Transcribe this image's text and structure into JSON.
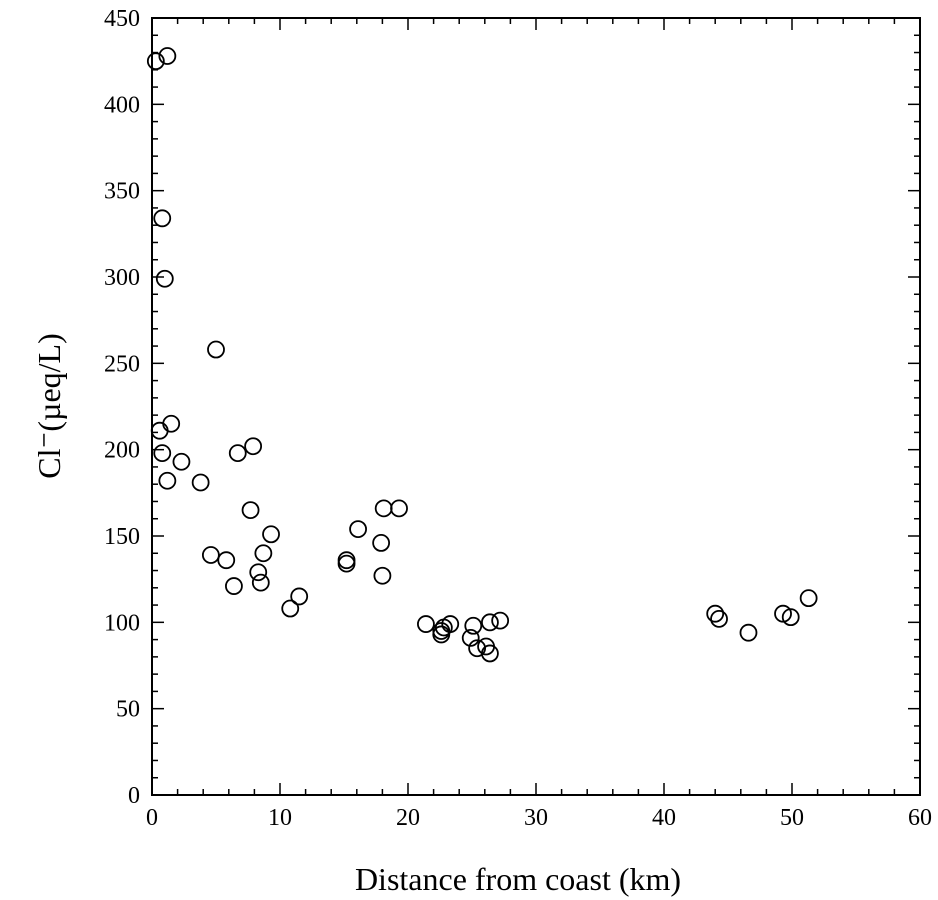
{
  "chart_data": {
    "type": "scatter",
    "xlabel": "Distance from coast (km)",
    "ylabel": "Cl⁻(µeq/L)",
    "xlim": [
      0,
      60
    ],
    "ylim": [
      0,
      450
    ],
    "xticks": [
      0,
      10,
      20,
      30,
      40,
      50,
      60
    ],
    "yticks": [
      0,
      50,
      100,
      150,
      200,
      250,
      300,
      350,
      400,
      450
    ],
    "x_minor_step": 2,
    "y_minor_step": 10,
    "grid": false,
    "marker": "open-circle",
    "marker_color": "#000000",
    "series": [
      {
        "points": [
          [
            0.3,
            425
          ],
          [
            1.2,
            428
          ],
          [
            0.8,
            334
          ],
          [
            1.0,
            299
          ],
          [
            5.0,
            258
          ],
          [
            0.6,
            211
          ],
          [
            1.5,
            215
          ],
          [
            0.8,
            198
          ],
          [
            1.2,
            182
          ],
          [
            2.3,
            193
          ],
          [
            3.8,
            181
          ],
          [
            6.7,
            198
          ],
          [
            7.9,
            202
          ],
          [
            7.7,
            165
          ],
          [
            9.3,
            151
          ],
          [
            8.7,
            140
          ],
          [
            4.6,
            139
          ],
          [
            5.8,
            136
          ],
          [
            8.3,
            129
          ],
          [
            8.5,
            123
          ],
          [
            6.4,
            121
          ],
          [
            11.5,
            115
          ],
          [
            10.8,
            108
          ],
          [
            15.2,
            134
          ],
          [
            15.2,
            136
          ],
          [
            16.1,
            154
          ],
          [
            18.1,
            166
          ],
          [
            19.3,
            166
          ],
          [
            17.9,
            146
          ],
          [
            18.0,
            127
          ],
          [
            21.4,
            99
          ],
          [
            22.6,
            93
          ],
          [
            22.8,
            97
          ],
          [
            22.6,
            95
          ],
          [
            23.3,
            99
          ],
          [
            25.1,
            98
          ],
          [
            24.9,
            91
          ],
          [
            25.4,
            85
          ],
          [
            26.1,
            86
          ],
          [
            26.4,
            82
          ],
          [
            26.4,
            100
          ],
          [
            27.2,
            101
          ],
          [
            44.0,
            105
          ],
          [
            44.3,
            102
          ],
          [
            46.6,
            94
          ],
          [
            49.3,
            105
          ],
          [
            49.9,
            103
          ],
          [
            51.3,
            114
          ]
        ]
      }
    ]
  }
}
